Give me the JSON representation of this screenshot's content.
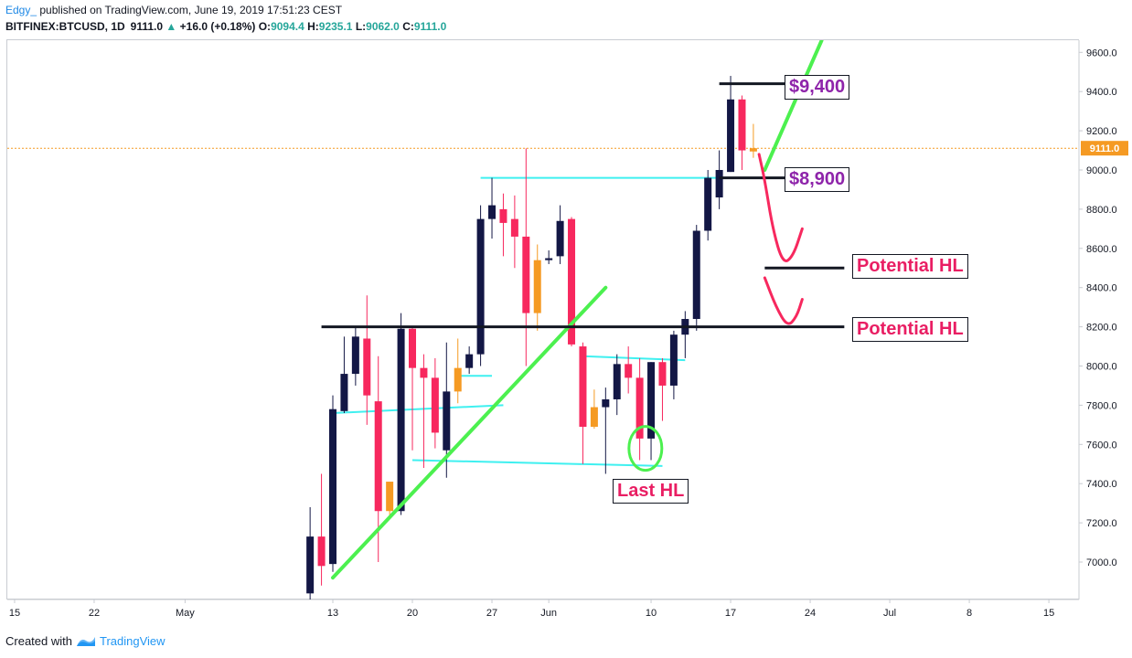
{
  "header": {
    "user": "Edgy_",
    "published": "published on TradingView.com, June 19, 2019 17:51:23 CEST",
    "symbol": "BITFINEX:BTCUSD, 1D",
    "last": "9111.0",
    "change_arrow": "▲",
    "change": "+16.0 (+0.18%)",
    "o_label": "O:",
    "o": "9094.4",
    "h_label": "H:",
    "h": "9235.1",
    "l_label": "L:",
    "l": "9062.0",
    "c_label": "C:",
    "c": "9111.0"
  },
  "footer": {
    "created": "Created with",
    "brand": "TradingView"
  },
  "annotations": {
    "p9400": "$9,400",
    "p8900": "$8,900",
    "hl1": "Potential HL",
    "hl2": "Potential HL",
    "last_hl": "Last HL"
  },
  "colors": {
    "up_candle": "#131745",
    "down_candle": "#f7285e",
    "neutral_candle": "#f59a23",
    "support_line": "#131722",
    "channel_line": "#3ff0f0",
    "trend_line": "#4cf04f",
    "projection": "#f7285e",
    "last_price": "#f59a23"
  },
  "chart_data": {
    "type": "candlestick",
    "symbol": "BITFINEX:BTCUSD",
    "interval": "1D",
    "y_ticks": [
      7000,
      7200,
      7400,
      7600,
      7800,
      8000,
      8200,
      8400,
      8600,
      8800,
      9000,
      9200,
      9400,
      9600
    ],
    "y_tick_labels": [
      "7000.0",
      "7200.0",
      "7400.0",
      "7600.0",
      "7800.0",
      "8000.0",
      "8200.0",
      "8400.0",
      "8600.0",
      "8800.0",
      "9000.0",
      "9200.0",
      "9400.0",
      "9600.0"
    ],
    "ylim": [
      6800,
      9680
    ],
    "last_price": 9111.0,
    "last_price_label": "9111.0",
    "x_axis": [
      {
        "label": "15",
        "day": -16
      },
      {
        "label": "22",
        "day": -9
      },
      {
        "label": "May",
        "day": -1
      },
      {
        "label": "13",
        "day": 12
      },
      {
        "label": "20",
        "day": 19
      },
      {
        "label": "27",
        "day": 26
      },
      {
        "label": "Jun",
        "day": 31
      },
      {
        "label": "10",
        "day": 40
      },
      {
        "label": "17",
        "day": 47
      },
      {
        "label": "24",
        "day": 54
      },
      {
        "label": "Jul",
        "day": 61
      },
      {
        "label": "8",
        "day": 68
      },
      {
        "label": "15",
        "day": 75
      }
    ],
    "candles": [
      {
        "day": 10,
        "o": 6840,
        "h": 7280,
        "l": 6800,
        "c": 7130
      },
      {
        "day": 11,
        "o": 7130,
        "h": 7450,
        "l": 6880,
        "c": 6980
      },
      {
        "day": 12,
        "o": 6990,
        "h": 7850,
        "l": 6950,
        "c": 7780
      },
      {
        "day": 13,
        "o": 7770,
        "h": 8150,
        "l": 7760,
        "c": 7960
      },
      {
        "day": 14,
        "o": 7960,
        "h": 8200,
        "l": 7900,
        "c": 8150
      },
      {
        "day": 15,
        "o": 8140,
        "h": 8360,
        "l": 7700,
        "c": 7850
      },
      {
        "day": 16,
        "o": 7820,
        "h": 8050,
        "l": 7000,
        "c": 7260
      },
      {
        "day": 17,
        "o": 7260,
        "h": 7400,
        "l": 7220,
        "c": 7410
      },
      {
        "day": 18,
        "o": 7260,
        "h": 8270,
        "l": 7240,
        "c": 8190
      },
      {
        "day": 19,
        "o": 8190,
        "h": 8200,
        "l": 7570,
        "c": 7990
      },
      {
        "day": 20,
        "o": 7990,
        "h": 8060,
        "l": 7480,
        "c": 7940
      },
      {
        "day": 21,
        "o": 7940,
        "h": 8040,
        "l": 7580,
        "c": 7660
      },
      {
        "day": 22,
        "o": 7570,
        "h": 8120,
        "l": 7430,
        "c": 7870
      },
      {
        "day": 23,
        "o": 7870,
        "h": 8140,
        "l": 7810,
        "c": 7990
      },
      {
        "day": 24,
        "o": 7990,
        "h": 8100,
        "l": 7960,
        "c": 8060
      },
      {
        "day": 25,
        "o": 8060,
        "h": 8820,
        "l": 8000,
        "c": 8750
      },
      {
        "day": 26,
        "o": 8750,
        "h": 8960,
        "l": 8650,
        "c": 8820
      },
      {
        "day": 27,
        "o": 8800,
        "h": 8880,
        "l": 8560,
        "c": 8730
      },
      {
        "day": 28,
        "o": 8750,
        "h": 8870,
        "l": 8500,
        "c": 8660
      },
      {
        "day": 29,
        "o": 8660,
        "h": 9110,
        "l": 8000,
        "c": 8270
      },
      {
        "day": 30,
        "o": 8270,
        "h": 8620,
        "l": 8180,
        "c": 8540
      },
      {
        "day": 31,
        "o": 8540,
        "h": 8590,
        "l": 8520,
        "c": 8550
      },
      {
        "day": 32,
        "o": 8560,
        "h": 8820,
        "l": 8520,
        "c": 8740
      },
      {
        "day": 33,
        "o": 8750,
        "h": 8760,
        "l": 8100,
        "c": 8110
      },
      {
        "day": 34,
        "o": 8100,
        "h": 8120,
        "l": 7500,
        "c": 7690
      },
      {
        "day": 35,
        "o": 7690,
        "h": 7880,
        "l": 7680,
        "c": 7790
      },
      {
        "day": 36,
        "o": 7790,
        "h": 7890,
        "l": 7450,
        "c": 7830
      },
      {
        "day": 37,
        "o": 7830,
        "h": 8060,
        "l": 7750,
        "c": 8010
      },
      {
        "day": 38,
        "o": 8010,
        "h": 8100,
        "l": 7860,
        "c": 7940
      },
      {
        "day": 39,
        "o": 7940,
        "h": 8040,
        "l": 7520,
        "c": 7630
      },
      {
        "day": 40,
        "o": 7630,
        "h": 8020,
        "l": 7520,
        "c": 8020
      },
      {
        "day": 41,
        "o": 8020,
        "h": 8040,
        "l": 7720,
        "c": 7900
      },
      {
        "day": 42,
        "o": 7900,
        "h": 8180,
        "l": 7830,
        "c": 8160
      },
      {
        "day": 43,
        "o": 8160,
        "h": 8280,
        "l": 8040,
        "c": 8240
      },
      {
        "day": 44,
        "o": 8240,
        "h": 8720,
        "l": 8180,
        "c": 8690
      },
      {
        "day": 45,
        "o": 8690,
        "h": 9000,
        "l": 8640,
        "c": 8960
      },
      {
        "day": 46,
        "o": 8860,
        "h": 9100,
        "l": 8800,
        "c": 9000
      },
      {
        "day": 47,
        "o": 8990,
        "h": 9480,
        "l": 8990,
        "c": 9360
      },
      {
        "day": 48,
        "o": 9360,
        "h": 9380,
        "l": 9000,
        "c": 9100
      },
      {
        "day": 49,
        "o": 9094.4,
        "h": 9235.1,
        "l": 9062.0,
        "c": 9111.0
      }
    ],
    "horizontal_lines": [
      {
        "name": "line-9400",
        "x0": 46,
        "x1": 53,
        "y": 9440,
        "color": "#131722"
      },
      {
        "name": "line-8900",
        "x0": 46,
        "x1": 53,
        "y": 8960,
        "color": "#131722"
      },
      {
        "name": "line-8500",
        "x0": 50,
        "x1": 57,
        "y": 8500,
        "color": "#131722"
      },
      {
        "name": "line-8200",
        "x0": 11,
        "x1": 57,
        "y": 8200,
        "color": "#131722"
      }
    ],
    "channel_lines": [
      {
        "name": "resistance-top",
        "x0": 25,
        "y0": 8960,
        "x1": 47,
        "y1": 8960
      },
      {
        "name": "support-bottom",
        "x0": 19,
        "y0": 7520,
        "x1": 41,
        "y1": 7490
      },
      {
        "name": "range-top",
        "x0": 34,
        "y0": 8050,
        "x1": 43,
        "y1": 8030
      },
      {
        "name": "inner-1",
        "x0": 12,
        "y0": 7760,
        "x1": 27,
        "y1": 7800
      },
      {
        "name": "inner-2",
        "x0": 23,
        "y0": 7950,
        "x1": 26,
        "y1": 7950
      }
    ],
    "trend_lines": [
      {
        "name": "uptrend",
        "x0": 12,
        "y0": 6920,
        "x1": 36,
        "y1": 8400
      },
      {
        "name": "breakout-up",
        "x0": 50,
        "y0": 9000,
        "x1": 55,
        "y1": 9660
      }
    ],
    "projections": [
      {
        "name": "projection-down",
        "points": [
          [
            49.5,
            9080
          ],
          [
            50,
            8950
          ],
          [
            50.7,
            8700
          ],
          [
            51.6,
            8520
          ],
          [
            52.5,
            8560
          ],
          [
            53.3,
            8700
          ]
        ]
      },
      {
        "name": "projection-down-2",
        "points": [
          [
            50,
            8450
          ],
          [
            51,
            8300
          ],
          [
            52,
            8200
          ],
          [
            52.8,
            8250
          ],
          [
            53.3,
            8340
          ]
        ]
      }
    ]
  }
}
